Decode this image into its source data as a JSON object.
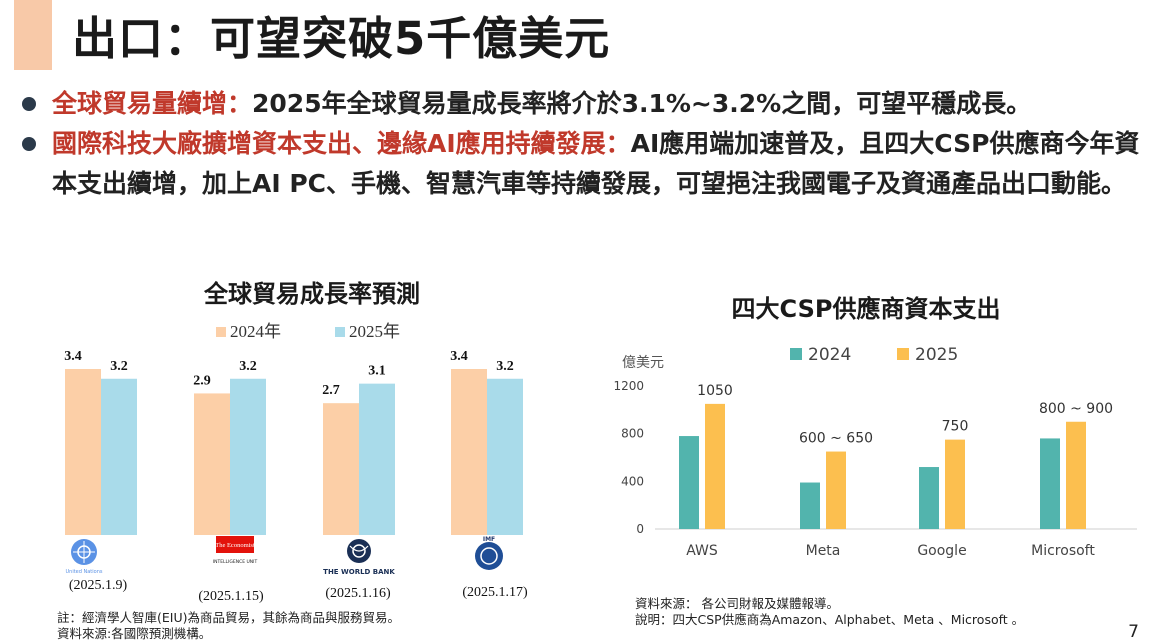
{
  "title": "出口：可望突破5千億美元",
  "bullets": [
    {
      "highlight": "全球貿易量續增：",
      "text": "2025年全球貿易量成長率將介於3.1%~3.2%之間，可望平穩成長。"
    },
    {
      "highlight": "國際科技大廠擴增資本支出、邊緣AI應用持續發展：",
      "text": "AI應用端加速普及，且四大CSP供應商今年資本支出續增，加上AI PC、手機、智慧汽車等持續發展，可望挹注我國電子及資通產品出口動能。"
    }
  ],
  "colors": {
    "orange_light": "#fccfa7",
    "blue_light": "#a9dbea",
    "teal": "#52b4ad",
    "gold": "#fcbf4f",
    "accent_red": "#c0392b"
  },
  "chart_data": [
    {
      "type": "bar",
      "title": "全球貿易成長率預測",
      "categories": [
        "United Nations",
        "The Economist Intelligence Unit",
        "The World Bank",
        "IMF"
      ],
      "category_dates": [
        "(2025.1.9)",
        "(2025.1.15)",
        "(2025.1.16)",
        "(2025.1.17)"
      ],
      "logo_texts": [
        "United Nations",
        "The Economist",
        "INTELLIGENCE UNIT",
        "THE WORLD BANK",
        "IMF"
      ],
      "series": [
        {
          "name": "2024年",
          "values": [
            3.4,
            2.9,
            2.7,
            3.4
          ],
          "labels": [
            "3.4",
            "2.9",
            "2.7",
            "3.4"
          ],
          "color": "#fccfa7"
        },
        {
          "name": "2025年",
          "values": [
            3.2,
            3.2,
            3.1,
            3.2
          ],
          "labels": [
            "3.2",
            "3.2",
            "3.1",
            "3.2"
          ],
          "color": "#a9dbea"
        }
      ],
      "ylim": [
        0,
        3.4
      ],
      "grid": false,
      "legend": "top"
    },
    {
      "type": "bar",
      "title": "四大CSP供應商資本支出",
      "ylabel": "億美元",
      "categories": [
        "AWS",
        "Meta",
        "Google",
        "Microsoft"
      ],
      "series": [
        {
          "name": "2024",
          "values": [
            780,
            390,
            520,
            760
          ],
          "color": "#52b4ad"
        },
        {
          "name": "2025",
          "values": [
            1050,
            650,
            750,
            900
          ],
          "labels": [
            "1050",
            "600 ~ 650",
            "750",
            "800 ~ 900"
          ],
          "color": "#fcbf4f"
        }
      ],
      "yticks": [
        0,
        400,
        800,
        1200
      ],
      "ylim": [
        0,
        1200
      ],
      "grid": false,
      "legend": "top"
    }
  ],
  "notes": {
    "left": [
      "註：經濟學人智庫(EIU)為商品貿易，其餘為商品與服務貿易。",
      "資料來源:各國際預測機構。"
    ],
    "right": [
      "資料來源： 各公司財報及媒體報導。",
      "說明：四大CSP供應商為Amazon、Alphabet、Meta 、Microsoft 。"
    ]
  },
  "page_number": "7"
}
